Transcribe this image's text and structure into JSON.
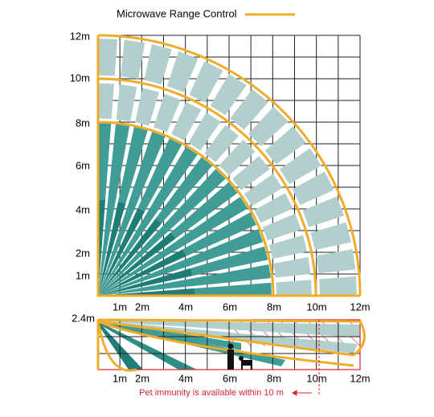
{
  "legend": {
    "label": "Microwave Range Control"
  },
  "top_view": {
    "y_labels": [
      "12m",
      "10m",
      "8m",
      "6m",
      "4m",
      "2m",
      "1m"
    ],
    "x_labels": [
      "1m",
      "2m",
      "4m",
      "6m",
      "8m",
      "10m",
      "12m"
    ]
  },
  "side_view": {
    "height_label": "2.4m",
    "x_labels": [
      "1m",
      "2m",
      "4m",
      "6m",
      "8m",
      "10m",
      "12m"
    ],
    "note": "Pet immunity is available within 10 m"
  }
}
